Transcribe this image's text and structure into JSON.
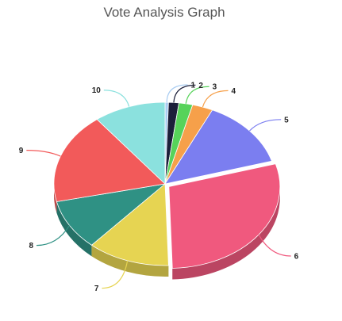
{
  "chart_data": {
    "type": "pie",
    "title": "Vote Analysis Graph",
    "categories": [
      "1",
      "2",
      "3",
      "4",
      "5",
      "6",
      "7",
      "8",
      "9",
      "10"
    ],
    "values": [
      0.5,
      1.5,
      2,
      3,
      13.5,
      29,
      12,
      10,
      18,
      10.5
    ],
    "colors": [
      "#a9cdf2",
      "#1c1f3a",
      "#57d35a",
      "#f6a04a",
      "#7b7ef0",
      "#f0597e",
      "#e6d452",
      "#2f9184",
      "#f25a5a",
      "#8be1de"
    ],
    "exploded": [
      "6"
    ],
    "depth_3d": true,
    "legend": "none"
  }
}
